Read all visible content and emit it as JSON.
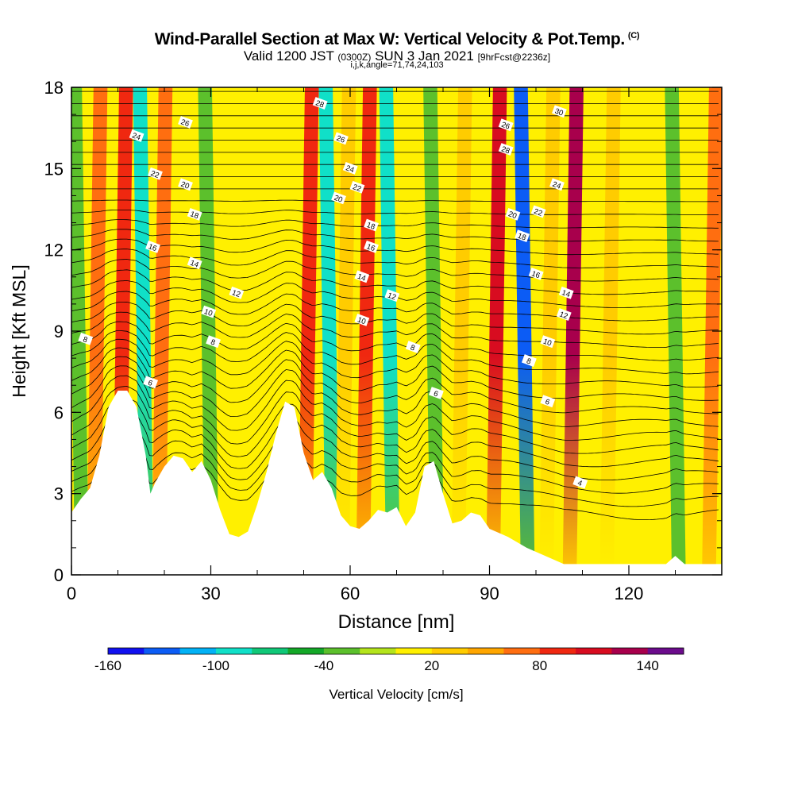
{
  "title": {
    "main": "Wind-Parallel Section at Max W: Vertical Velocity & Pot.Temp.",
    "main_mark": "(C)",
    "valid_prefix": "Valid 1200 JST",
    "valid_utc": "(0300Z)",
    "valid_date": "SUN 3 Jan 2021",
    "forecast": "[9hrFcst@2236z]",
    "indices": "i,j,k,angle=71,74,24,103"
  },
  "chart_data": {
    "type": "heatmap",
    "xlabel": "Distance [nm]",
    "ylabel": "Height [Kft MSL]",
    "xlim": [
      0,
      140
    ],
    "ylim": [
      0,
      18
    ],
    "x_ticks": [
      0,
      30,
      60,
      90,
      120
    ],
    "y_ticks": [
      0,
      3,
      6,
      9,
      12,
      15,
      18
    ],
    "colorbar": {
      "label": "Vertical Velocity [cm/s]",
      "tick_labels": [
        "-160",
        "-100",
        "-40",
        "20",
        "80",
        "140"
      ],
      "tick_values": [
        -160,
        -100,
        -40,
        20,
        80,
        140
      ],
      "min": -160,
      "max": 160,
      "step": 20,
      "colors": [
        "#1010f0",
        "#0c5cf5",
        "#02b2f6",
        "#10e0c8",
        "#10c878",
        "#14a828",
        "#5cc02c",
        "#b4e41c",
        "#fff000",
        "#ffcc00",
        "#ffa600",
        "#ff6e10",
        "#f02810",
        "#d80c20",
        "#a8004c",
        "#6c0c8c"
      ]
    },
    "terrain_profile_kft": [
      [
        0,
        2.3
      ],
      [
        2,
        2.8
      ],
      [
        4,
        3.2
      ],
      [
        6,
        4.4
      ],
      [
        8,
        6.2
      ],
      [
        10,
        6.8
      ],
      [
        12,
        6.8
      ],
      [
        14,
        6.2
      ],
      [
        16,
        4.4
      ],
      [
        17,
        3.0
      ],
      [
        18,
        3.4
      ],
      [
        20,
        4.0
      ],
      [
        22,
        4.4
      ],
      [
        24,
        4.3
      ],
      [
        26,
        3.8
      ],
      [
        28,
        4.2
      ],
      [
        30,
        3.5
      ],
      [
        32,
        2.4
      ],
      [
        34,
        1.5
      ],
      [
        36,
        1.4
      ],
      [
        38,
        1.6
      ],
      [
        40,
        2.6
      ],
      [
        42,
        3.8
      ],
      [
        44,
        5.2
      ],
      [
        46,
        6.4
      ],
      [
        48,
        6.2
      ],
      [
        50,
        4.5
      ],
      [
        52,
        3.5
      ],
      [
        54,
        3.8
      ],
      [
        56,
        3.2
      ],
      [
        58,
        2.2
      ],
      [
        60,
        1.8
      ],
      [
        62,
        1.7
      ],
      [
        64,
        2.0
      ],
      [
        66,
        2.4
      ],
      [
        68,
        2.3
      ],
      [
        70,
        2.5
      ],
      [
        72,
        1.8
      ],
      [
        74,
        2.3
      ],
      [
        76,
        4.0
      ],
      [
        78,
        4.2
      ],
      [
        80,
        3.0
      ],
      [
        82,
        1.9
      ],
      [
        84,
        2.0
      ],
      [
        86,
        2.3
      ],
      [
        88,
        2.2
      ],
      [
        90,
        1.7
      ],
      [
        94,
        1.4
      ],
      [
        98,
        1.0
      ],
      [
        102,
        0.7
      ],
      [
        106,
        0.4
      ],
      [
        116,
        0.4
      ],
      [
        128,
        0.4
      ],
      [
        130,
        0.7
      ],
      [
        132,
        0.4
      ],
      [
        140,
        0.4
      ]
    ],
    "velocity_bands": [
      {
        "x": 1.5,
        "w": 3,
        "v": -40
      },
      {
        "x": 5.5,
        "w": 3,
        "v": 60
      },
      {
        "x": 11,
        "w": 3,
        "v": 80
      },
      {
        "x": 15.5,
        "w": 3,
        "v": -100
      },
      {
        "x": 19.5,
        "w": 3,
        "v": 60
      },
      {
        "x": 24,
        "w": 3,
        "v": 0
      },
      {
        "x": 29.5,
        "w": 3,
        "v": -40
      },
      {
        "x": 51,
        "w": 3,
        "v": 80
      },
      {
        "x": 55.5,
        "w": 3,
        "v": -100
      },
      {
        "x": 59,
        "w": 3,
        "v": 20
      },
      {
        "x": 63.5,
        "w": 3,
        "v": 80
      },
      {
        "x": 68.5,
        "w": 3,
        "v": -100
      },
      {
        "x": 73,
        "w": 3,
        "v": 0
      },
      {
        "x": 78,
        "w": 3,
        "v": -40
      },
      {
        "x": 84,
        "w": 3,
        "v": 20
      },
      {
        "x": 91.5,
        "w": 3,
        "v": 100
      },
      {
        "x": 97.5,
        "w": 3,
        "v": -140
      },
      {
        "x": 103,
        "w": 3,
        "v": 20
      },
      {
        "x": 108,
        "w": 3,
        "v": 120
      },
      {
        "x": 116,
        "w": 3,
        "v": 20
      },
      {
        "x": 130,
        "w": 3,
        "v": -40
      },
      {
        "x": 138,
        "w": 3,
        "v": 60
      }
    ],
    "theta_contour_labels": [
      {
        "text": "28",
        "x": 53.5,
        "y": 17.4
      },
      {
        "text": "26",
        "x": 24.5,
        "y": 16.7
      },
      {
        "text": "24",
        "x": 14,
        "y": 16.2
      },
      {
        "text": "26",
        "x": 58,
        "y": 16.1
      },
      {
        "text": "26",
        "x": 93.5,
        "y": 16.6
      },
      {
        "text": "30",
        "x": 105,
        "y": 17.1
      },
      {
        "text": "28",
        "x": 93.5,
        "y": 15.7
      },
      {
        "text": "24",
        "x": 60,
        "y": 15.0
      },
      {
        "text": "22",
        "x": 18,
        "y": 14.8
      },
      {
        "text": "20",
        "x": 24.5,
        "y": 14.4
      },
      {
        "text": "22",
        "x": 61.5,
        "y": 14.3
      },
      {
        "text": "24",
        "x": 104.5,
        "y": 14.4
      },
      {
        "text": "20",
        "x": 57.5,
        "y": 13.9
      },
      {
        "text": "18",
        "x": 26.5,
        "y": 13.3
      },
      {
        "text": "20",
        "x": 95,
        "y": 13.3
      },
      {
        "text": "22",
        "x": 100.5,
        "y": 13.4
      },
      {
        "text": "18",
        "x": 64.5,
        "y": 12.9
      },
      {
        "text": "18",
        "x": 97,
        "y": 12.5
      },
      {
        "text": "16",
        "x": 17.5,
        "y": 12.1
      },
      {
        "text": "16",
        "x": 64.5,
        "y": 12.1
      },
      {
        "text": "14",
        "x": 26.5,
        "y": 11.5
      },
      {
        "text": "16",
        "x": 100,
        "y": 11.1
      },
      {
        "text": "14",
        "x": 62.5,
        "y": 11.0
      },
      {
        "text": "12",
        "x": 35.5,
        "y": 10.4
      },
      {
        "text": "12",
        "x": 69,
        "y": 10.3
      },
      {
        "text": "14",
        "x": 106.5,
        "y": 10.4
      },
      {
        "text": "10",
        "x": 29.5,
        "y": 9.7
      },
      {
        "text": "12",
        "x": 106,
        "y": 9.6
      },
      {
        "text": "10",
        "x": 62.5,
        "y": 9.4
      },
      {
        "text": "8",
        "x": 3,
        "y": 8.7
      },
      {
        "text": "8",
        "x": 30.5,
        "y": 8.6
      },
      {
        "text": "10",
        "x": 102.5,
        "y": 8.6
      },
      {
        "text": "8",
        "x": 73.5,
        "y": 8.4
      },
      {
        "text": "8",
        "x": 98.5,
        "y": 7.9
      },
      {
        "text": "6",
        "x": 17,
        "y": 7.1
      },
      {
        "text": "6",
        "x": 78.5,
        "y": 6.7
      },
      {
        "text": "6",
        "x": 102.5,
        "y": 6.4
      },
      {
        "text": "4",
        "x": 109.5,
        "y": 3.4
      }
    ]
  }
}
